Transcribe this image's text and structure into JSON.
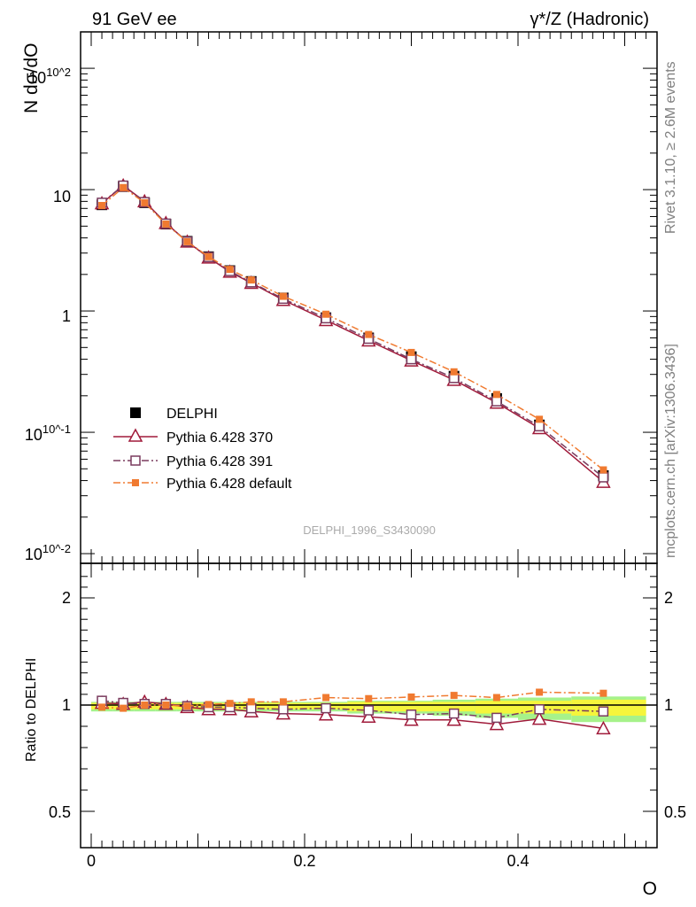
{
  "header": {
    "left_label": "91 GeV ee",
    "right_label": "γ*/Z (Hadronic)"
  },
  "side_labels": {
    "rivet": "Rivet 3.1.10, ≥ 2.6M events",
    "mcplots": "mcplots.cern.ch [arXiv:1306.3436]"
  },
  "watermark": "DELPHI_1996_S3430090",
  "chart_data": [
    {
      "type": "line",
      "panel": "main",
      "yscale": "log",
      "ylabel": "N dσ/dO",
      "xlabel": "O",
      "xlim": [
        -0.01,
        0.53
      ],
      "ylim": [
        0.008,
        250
      ],
      "y_tick_labels": [
        "10^-2",
        "10^-1",
        "1",
        "10",
        "10^2"
      ],
      "x": [
        0.01,
        0.03,
        0.05,
        0.07,
        0.09,
        0.11,
        0.13,
        0.15,
        0.18,
        0.22,
        0.26,
        0.3,
        0.34,
        0.38,
        0.42,
        0.48
      ],
      "series": [
        {
          "name": "DELPHI",
          "color": "#000000",
          "marker": "filled-square",
          "values": [
            7.5,
            10.6,
            7.8,
            5.2,
            3.75,
            2.8,
            2.15,
            1.75,
            1.28,
            0.88,
            0.6,
            0.42,
            0.29,
            0.19,
            0.115,
            0.044
          ]
        },
        {
          "name": "Pythia 6.428 370",
          "color": "#a01a3a",
          "marker": "open-triangle",
          "line": "solid",
          "values": [
            7.7,
            10.8,
            8.0,
            5.3,
            3.72,
            2.75,
            2.1,
            1.7,
            1.23,
            0.84,
            0.57,
            0.39,
            0.27,
            0.175,
            0.108,
            0.039
          ]
        },
        {
          "name": "Pythia 6.428 391",
          "color": "#7a3b5e",
          "marker": "open-square",
          "line": "dash-dot",
          "values": [
            7.8,
            10.8,
            7.9,
            5.25,
            3.73,
            2.78,
            2.13,
            1.72,
            1.26,
            0.87,
            0.59,
            0.4,
            0.28,
            0.18,
            0.112,
            0.0425
          ]
        },
        {
          "name": "Pythia 6.428 default",
          "color": "#f07a30",
          "marker": "filled-square",
          "line": "dash-dot",
          "values": [
            7.4,
            10.4,
            7.8,
            5.2,
            3.72,
            2.8,
            2.2,
            1.8,
            1.32,
            0.94,
            0.64,
            0.455,
            0.315,
            0.205,
            0.128,
            0.049
          ]
        }
      ]
    },
    {
      "type": "line",
      "panel": "ratio",
      "ylabel": "Ratio to DELPHI",
      "xlabel": "O",
      "xlim": [
        -0.01,
        0.53
      ],
      "ylim": [
        0.4,
        2.3
      ],
      "x_tick_labels": [
        "0",
        "0.2",
        "0.4"
      ],
      "y_tick_labels": [
        "0.5",
        "1",
        "2"
      ],
      "x": [
        0.01,
        0.03,
        0.05,
        0.07,
        0.09,
        0.11,
        0.13,
        0.15,
        0.18,
        0.22,
        0.26,
        0.3,
        0.34,
        0.38,
        0.42,
        0.48
      ],
      "band": {
        "inner_color": "#f5f53c",
        "outer_color": "#a6f28a",
        "inner_half_width": [
          0.02,
          0.02,
          0.02,
          0.02,
          0.02,
          0.02,
          0.02,
          0.02,
          0.02,
          0.02,
          0.03,
          0.03,
          0.03,
          0.04,
          0.04,
          0.05
        ],
        "outer_half_width": [
          0.03,
          0.03,
          0.03,
          0.03,
          0.03,
          0.03,
          0.03,
          0.03,
          0.03,
          0.03,
          0.04,
          0.04,
          0.05,
          0.06,
          0.07,
          0.08
        ]
      },
      "series": [
        {
          "name": "Pythia 6.428 370",
          "color": "#a01a3a",
          "marker": "open-triangle",
          "line": "solid",
          "values": [
            1.02,
            1.01,
            1.03,
            1.01,
            0.99,
            0.98,
            0.98,
            0.97,
            0.96,
            0.955,
            0.945,
            0.93,
            0.93,
            0.91,
            0.935,
            0.89
          ]
        },
        {
          "name": "Pythia 6.428 391",
          "color": "#7a3b5e",
          "marker": "open-square",
          "line": "dash-dot",
          "values": [
            1.04,
            1.02,
            1.01,
            1.01,
            0.995,
            0.99,
            0.99,
            0.985,
            0.98,
            0.985,
            0.975,
            0.955,
            0.96,
            0.94,
            0.98,
            0.97
          ]
        },
        {
          "name": "Pythia 6.428 default",
          "color": "#f07a30",
          "marker": "filled-square",
          "line": "dash-dot",
          "values": [
            0.99,
            0.985,
            1.0,
            1.0,
            0.995,
            1.005,
            1.015,
            1.03,
            1.03,
            1.07,
            1.06,
            1.075,
            1.09,
            1.07,
            1.12,
            1.11
          ]
        }
      ]
    }
  ]
}
